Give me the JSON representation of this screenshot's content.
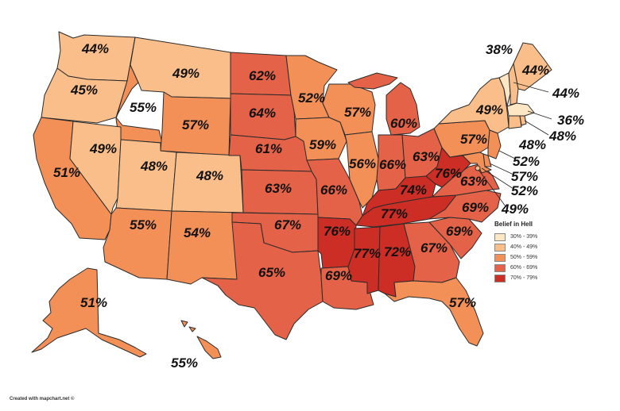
{
  "colors": {
    "c30": "#fde6c4",
    "c40": "#f9be8a",
    "c50": "#f39058",
    "c60": "#e46247",
    "c70": "#cc2e26"
  },
  "legend": {
    "title": "Belief in Hell",
    "items": [
      {
        "label": "30% - 39%",
        "color_key": "c30"
      },
      {
        "label": "40% - 49%",
        "color_key": "c40"
      },
      {
        "label": "50% - 59%",
        "color_key": "c50"
      },
      {
        "label": "60% - 69%",
        "color_key": "c60"
      },
      {
        "label": "70% - 79%",
        "color_key": "c70"
      }
    ]
  },
  "credit": "Created with mapchart.net ©",
  "states": {
    "WA": "44%",
    "OR": "45%",
    "CA": "51%",
    "ID": "55%",
    "NV": "49%",
    "UT": "48%",
    "AZ": "55%",
    "MT": "49%",
    "WY": "57%",
    "CO": "48%",
    "NM": "54%",
    "ND": "62%",
    "SD": "64%",
    "NE": "61%",
    "KS": "63%",
    "OK": "67%",
    "TX": "65%",
    "MN": "52%",
    "IA": "59%",
    "MO": "66%",
    "AR": "76%",
    "LA": "69%",
    "WI": "57%",
    "IL": "56%",
    "MI": "60%",
    "IN": "66%",
    "OH": "63%",
    "KY": "74%",
    "TN": "77%",
    "MS": "77%",
    "AL": "72%",
    "GA": "67%",
    "FL": "57%",
    "SC": "69%",
    "NC": "69%",
    "VA": "63%",
    "WV": "76%",
    "PA": "57%",
    "NY": "49%",
    "VT": "38%",
    "NH": "44%",
    "ME": "44%",
    "MA": "36%",
    "RI": "48%",
    "CT": "48%",
    "NJ": "52%",
    "DE": "57%",
    "MD": "52%",
    "DC": "49%",
    "AK": "51%",
    "HI": "55%"
  }
}
